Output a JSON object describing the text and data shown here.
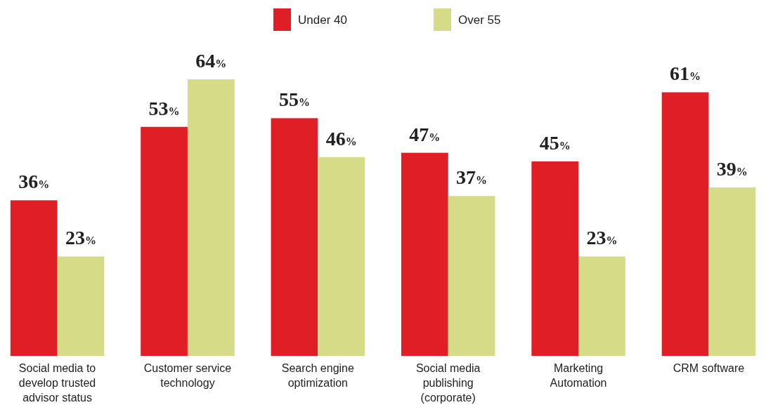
{
  "chart_data": {
    "type": "bar",
    "categories": [
      "Social media to develop trusted advisor status",
      "Customer service technology",
      "Search engine optimization",
      "Social media publishing (corporate)",
      "Marketing Automation",
      "CRM software"
    ],
    "series": [
      {
        "name": "Under 40",
        "color": "#e01e25",
        "values": [
          36,
          53,
          55,
          47,
          45,
          61
        ],
        "value_labels": [
          "36%",
          "53%",
          "55%",
          "47%",
          "45%",
          "61%"
        ]
      },
      {
        "name": "Over 55",
        "color": "#d6db88",
        "values": [
          23,
          64,
          46,
          37,
          23,
          39
        ],
        "value_labels": [
          "23%",
          "64%",
          "46%",
          "37%",
          "23%",
          "39%"
        ]
      }
    ],
    "relative": false,
    "legend": "top",
    "grid": false
  }
}
